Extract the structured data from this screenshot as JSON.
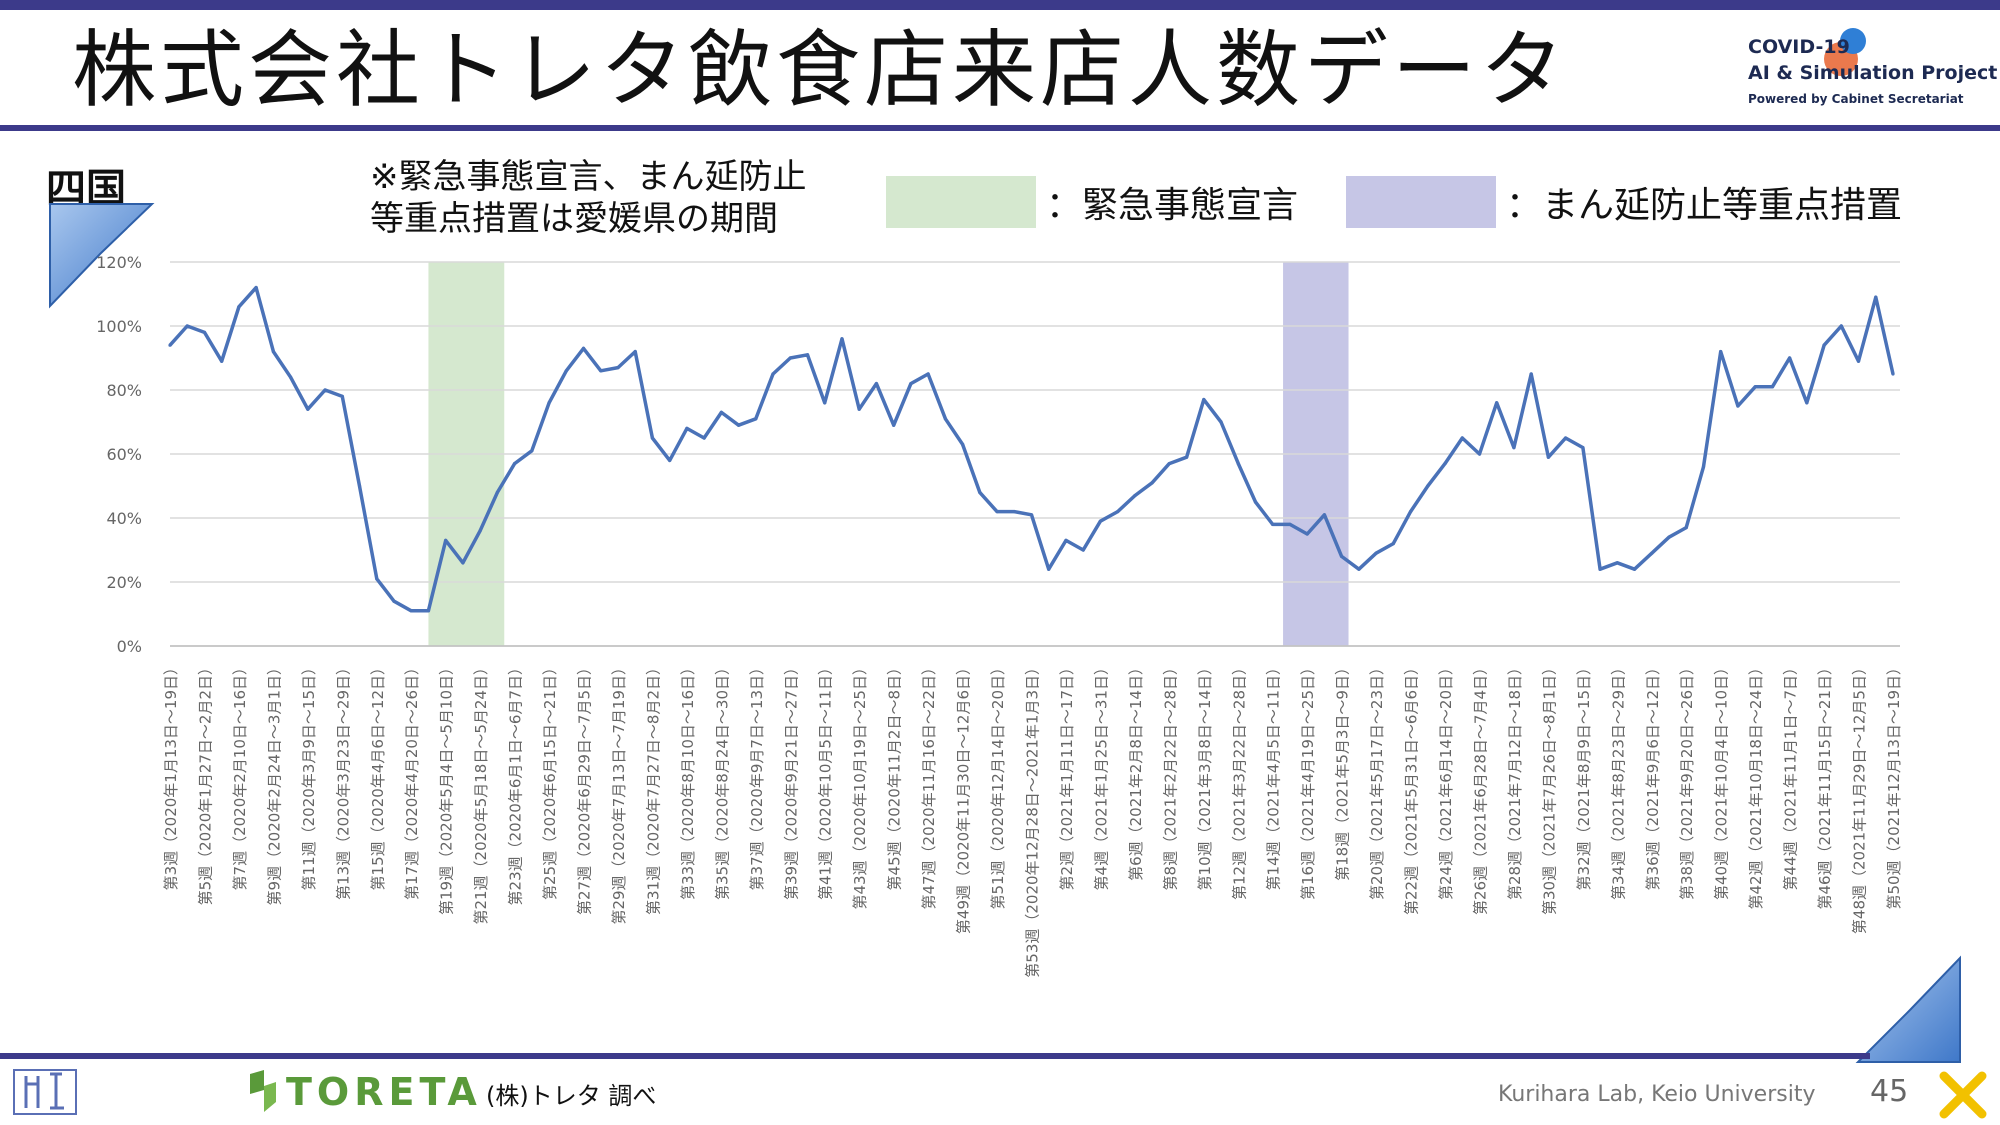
{
  "header": {
    "title": "株式会社トレタ飲食店来店人数データ"
  },
  "logo": {
    "line1": "COVID-19",
    "line2": "AI & Simulation Project",
    "line3": "Powered by Cabinet Secretariat"
  },
  "region": "四国",
  "note": "※緊急事態宣言、まん延防止\n等重点措置は愛媛県の期間",
  "legend": [
    {
      "label": "：緊急事態宣言",
      "color": "#d5e8cf"
    },
    {
      "label": "：まん延防止等重点措置",
      "color": "#c6c6e6"
    }
  ],
  "footer": {
    "source": "(株)トレタ 調べ",
    "lab": "Kurihara Lab, Keio University",
    "page": "45",
    "brand": "TORETA"
  },
  "chart_data": {
    "type": "line",
    "y_ticks": [
      "0%",
      "20%",
      "40%",
      "60%",
      "80%",
      "100%",
      "120%"
    ],
    "ylim": [
      0,
      120
    ],
    "line_color": "#4a72b8",
    "x_labels": [
      "第3週（2020年1月13日～19日）",
      "第5週（2020年1月27日～2月2日）",
      "第7週（2020年2月10日～16日）",
      "第9週（2020年2月24日～3月1日）",
      "第11週（2020年3月9日～15日）",
      "第13週（2020年3月23日～29日）",
      "第15週（2020年4月6日～12日）",
      "第17週（2020年4月20日～26日）",
      "第19週（2020年5月4日～5月10日）",
      "第21週（2020年5月18日～5月24日）",
      "第23週（2020年6月1日～6月7日）",
      "第25週（2020年6月15日～21日）",
      "第27週（2020年6月29日～7月5日）",
      "第29週（2020年7月13日～7月19日）",
      "第31週（2020年7月27日～8月2日）",
      "第33週（2020年8月10日～16日）",
      "第35週（2020年8月24日～30日）",
      "第37週（2020年9月7日～13日）",
      "第39週（2020年9月21日～27日）",
      "第41週（2020年10月5日～11日）",
      "第43週（2020年10月19日～25日）",
      "第45週（2020年11月2日～8日）",
      "第47週（2020年11月16日～22日）",
      "第49週（2020年11月30日～12月6日）",
      "第51週（2020年12月14日～20日）",
      "第53週（2020年12月28日～2021年1月3日）",
      "第2週（2021年1月11日～17日）",
      "第4週（2021年1月25日～31日）",
      "第6週（2021年2月8日～14日）",
      "第8週（2021年2月22日～28日）",
      "第10週（2021年3月8日～14日）",
      "第12週（2021年3月22日～28日）",
      "第14週（2021年4月5日～11日）",
      "第16週（2021年4月19日～25日）",
      "第18週（2021年5月3日～9日）",
      "第20週（2021年5月17日～23日）",
      "第22週（2021年5月31日～6月6日）",
      "第24週（2021年6月14日～20日）",
      "第26週（2021年6月28日～7月4日）",
      "第28週（2021年7月12日～18日）",
      "第30週（2021年7月26日～8月1日）",
      "第32週（2021年8月9日～15日）",
      "第34週（2021年8月23日～29日）",
      "第36週（2021年9月6日～12日）",
      "第38週（2021年9月20日～26日）",
      "第40週（2021年10月4日～10日）",
      "第42週（2021年10月18日～24日）",
      "第44週（2021年11月1日～7日）",
      "第46週（2021年11月15日～21日）",
      "第48週（2021年11月29日～12月5日）",
      "第50週（2021年12月13日～19日）"
    ],
    "values": [
      94,
      100,
      98,
      89,
      106,
      112,
      92,
      84,
      74,
      80,
      78,
      50,
      21,
      14,
      11,
      11,
      33,
      26,
      36,
      48,
      57,
      61,
      76,
      86,
      93,
      86,
      87,
      92,
      65,
      58,
      68,
      65,
      73,
      69,
      71,
      85,
      90,
      91,
      76,
      96,
      74,
      82,
      69,
      82,
      85,
      71,
      63,
      48,
      42,
      42,
      41,
      24,
      33,
      30,
      39,
      42,
      47,
      51,
      57,
      59,
      77,
      70,
      57,
      45,
      38,
      38,
      35,
      41,
      28,
      24,
      29,
      32,
      42,
      50,
      57,
      65,
      60,
      76,
      62,
      85,
      59,
      65,
      62,
      24,
      26,
      24,
      29,
      34,
      37,
      56,
      92,
      75,
      81,
      81,
      90,
      76,
      94,
      100,
      89,
      109,
      85
    ],
    "shaded_periods": [
      {
        "type": "emergency",
        "start": 15,
        "end": 19.4
      },
      {
        "type": "semi_emergency",
        "start": 64.6,
        "end": 68.4
      }
    ]
  }
}
